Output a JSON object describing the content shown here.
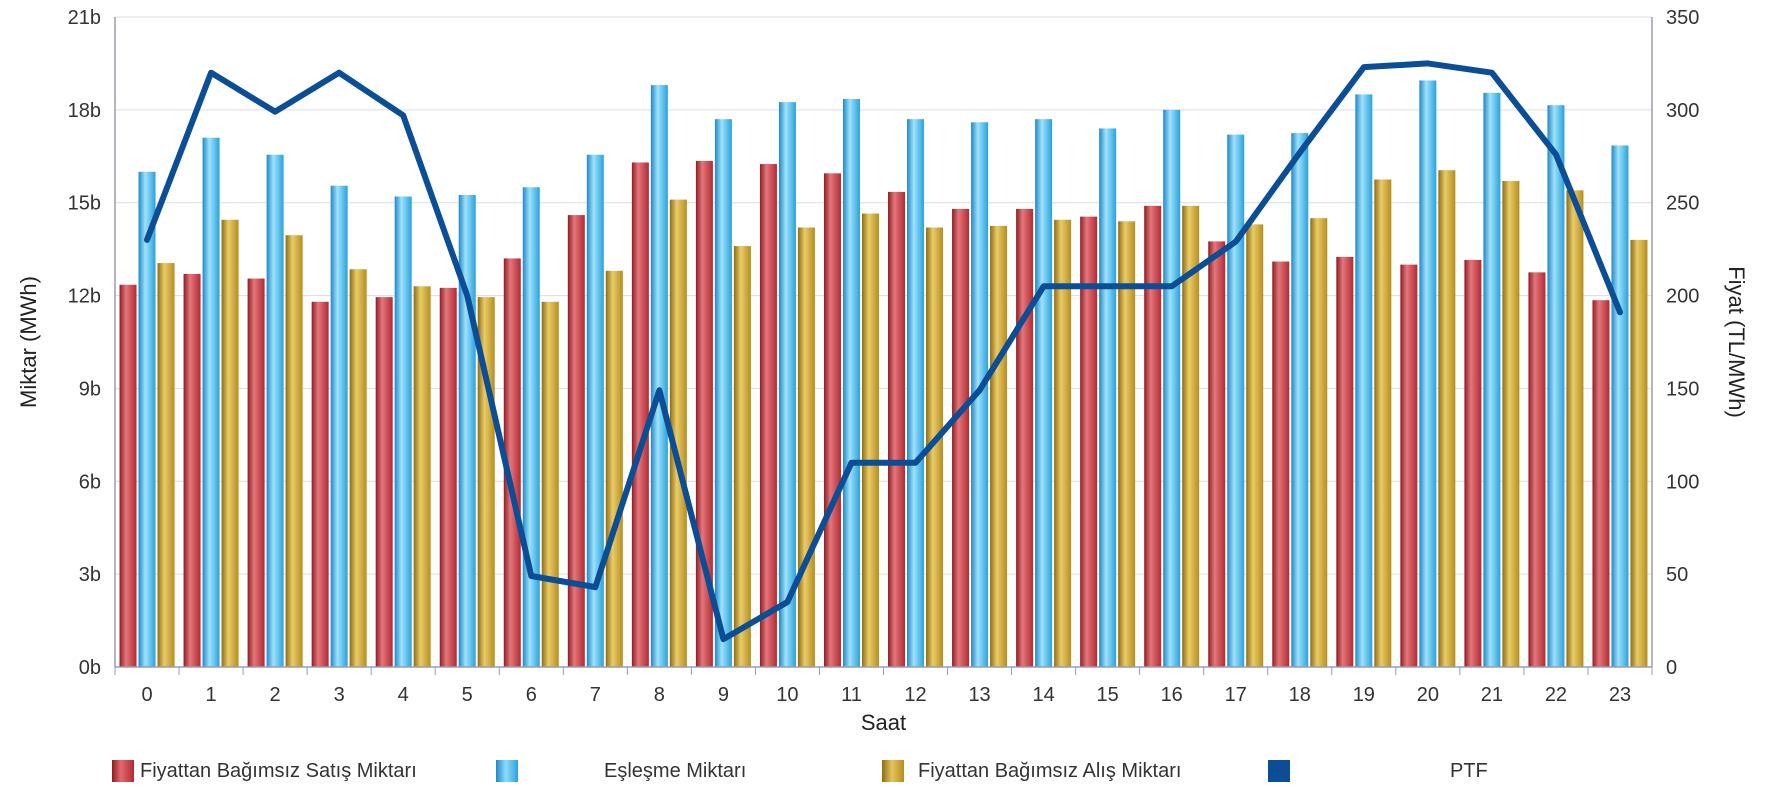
{
  "chart_data": {
    "type": "bar",
    "xlabel": "Saat",
    "ylabel": "Miktar (MWh)",
    "y2label": "Fiyat (TL/MWh)",
    "categories": [
      "0",
      "1",
      "2",
      "3",
      "4",
      "5",
      "6",
      "7",
      "8",
      "9",
      "10",
      "11",
      "12",
      "13",
      "14",
      "15",
      "16",
      "17",
      "18",
      "19",
      "20",
      "21",
      "22",
      "23"
    ],
    "y_ticks": [
      "0b",
      "3b",
      "6b",
      "9b",
      "12b",
      "15b",
      "18b",
      "21b"
    ],
    "y2_ticks": [
      "0",
      "50",
      "100",
      "150",
      "200",
      "250",
      "300",
      "350"
    ],
    "ylim": [
      0,
      21000
    ],
    "y2lim": [
      0,
      350
    ],
    "grid": true,
    "legend_position": "bottom",
    "series": [
      {
        "name": "Fiyattan Bağımsız Satış Miktarı",
        "kind": "bar",
        "axis": "left",
        "color": "#c0353c",
        "values": [
          12350,
          12700,
          12550,
          11800,
          11950,
          12250,
          13200,
          14600,
          16300,
          16350,
          16250,
          15950,
          15350,
          14800,
          14800,
          14550,
          14900,
          13750,
          13100,
          13250,
          13000,
          13150,
          12750,
          11850
        ]
      },
      {
        "name": "Eşleşme Miktarı",
        "kind": "bar",
        "axis": "left",
        "color": "#35a9e0",
        "values": [
          16000,
          17100,
          16550,
          15550,
          15200,
          15250,
          15500,
          16550,
          18800,
          17700,
          18250,
          18350,
          17700,
          17600,
          17700,
          17400,
          18000,
          17200,
          17250,
          18500,
          18950,
          18550,
          18150,
          16850
        ]
      },
      {
        "name": "Fiyattan Bağımsız Alış Miktarı",
        "kind": "bar",
        "axis": "left",
        "color": "#c9a030",
        "values": [
          13050,
          14450,
          13950,
          12850,
          12300,
          11950,
          11800,
          12800,
          15100,
          13600,
          14200,
          14650,
          14200,
          14250,
          14450,
          14400,
          14900,
          14300,
          14500,
          15750,
          16050,
          15700,
          15400,
          13800
        ]
      },
      {
        "name": "PTF",
        "kind": "line",
        "axis": "right",
        "color": "#0b4e96",
        "values": [
          230,
          320,
          299,
          320,
          297,
          200,
          49,
          43,
          149,
          15,
          35,
          110,
          110,
          149,
          205,
          205,
          205,
          229,
          277,
          323,
          325,
          320,
          276,
          191
        ]
      }
    ]
  }
}
